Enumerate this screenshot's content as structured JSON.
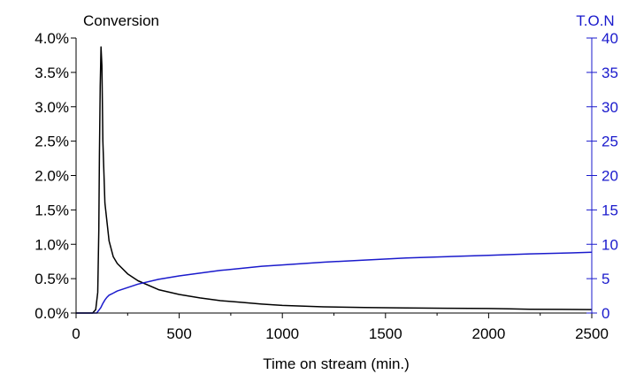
{
  "chart_data": {
    "type": "line",
    "xlabel": "Time on stream (min.)",
    "y_left_label": "Conversion",
    "y_right_label": "T.O.N",
    "xlim": [
      0,
      2500
    ],
    "y_left_lim": [
      0,
      4.0
    ],
    "y_right_lim": [
      0,
      40
    ],
    "x_ticks": [
      0,
      500,
      1000,
      1500,
      2000,
      2500
    ],
    "x_tick_labels": [
      "0",
      "500",
      "1000",
      "1500",
      "2000",
      "2500"
    ],
    "y_left_ticks": [
      0,
      0.5,
      1.0,
      1.5,
      2.0,
      2.5,
      3.0,
      3.5,
      4.0
    ],
    "y_left_tick_labels": [
      "0.0%",
      "0.5%",
      "1.0%",
      "1.5%",
      "2.0%",
      "2.5%",
      "3.0%",
      "3.5%",
      "4.0%"
    ],
    "y_right_ticks": [
      0,
      5,
      10,
      15,
      20,
      25,
      30,
      35,
      40
    ],
    "y_right_tick_labels": [
      "0",
      "5",
      "10",
      "15",
      "20",
      "25",
      "30",
      "35",
      "40"
    ],
    "grid": false,
    "colors": {
      "conversion": "#000000",
      "ton": "#1a1acc"
    },
    "series": [
      {
        "axis": "left",
        "x": [
          0,
          80,
          95,
          105,
          110,
          113,
          117,
          121,
          125,
          130,
          140,
          160,
          180,
          200,
          250,
          300,
          400,
          500,
          600,
          700,
          800,
          900,
          1000,
          1200,
          1400,
          1600,
          1800,
          2000,
          2100,
          2200,
          2500
        ],
        "y": [
          0,
          0,
          0.05,
          0.3,
          1.2,
          2.3,
          3.3,
          3.87,
          3.6,
          2.5,
          1.6,
          1.05,
          0.82,
          0.72,
          0.57,
          0.47,
          0.34,
          0.27,
          0.22,
          0.18,
          0.155,
          0.13,
          0.11,
          0.09,
          0.08,
          0.075,
          0.07,
          0.065,
          0.06,
          0.055,
          0.05
        ]
      },
      {
        "axis": "right",
        "x": [
          0,
          100,
          110,
          120,
          130,
          140,
          150,
          160,
          180,
          200,
          250,
          300,
          400,
          500,
          600,
          700,
          800,
          900,
          1000,
          1200,
          1400,
          1600,
          1800,
          2000,
          2200,
          2400,
          2500
        ],
        "y": [
          0,
          0,
          0.4,
          0.8,
          1.4,
          1.9,
          2.3,
          2.6,
          2.9,
          3.2,
          3.7,
          4.2,
          4.9,
          5.4,
          5.8,
          6.2,
          6.5,
          6.8,
          7.0,
          7.4,
          7.7,
          8.0,
          8.2,
          8.4,
          8.6,
          8.75,
          8.85
        ]
      }
    ]
  }
}
